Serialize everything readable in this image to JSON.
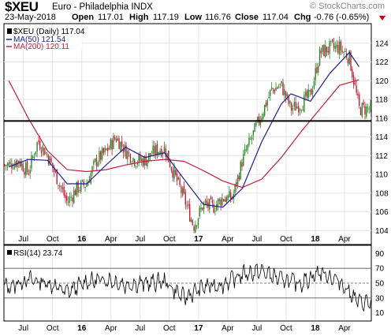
{
  "header": {
    "symbol": "$XEU",
    "description": "Euro - Philadelphia INDX",
    "date": "23-May-2018",
    "open_label": "Open",
    "open_value": "117.01",
    "high_label": "High",
    "high_value": "117.19",
    "low_label": "Low",
    "low_value": "116.76",
    "close_label": "Close",
    "close_value": "117.04",
    "chg_label": "Chg",
    "chg_value": "-0.76 (-0.65%)",
    "brand": "© StockCharts.com",
    "down_arrow_color": "#c00000"
  },
  "chart_data": [
    {
      "type": "candlestick",
      "legend": [
        {
          "label": "$XEU (Daily) 117.04",
          "color": "#000000"
        },
        {
          "label": "MA(50) 121.54",
          "color": "#1f1f9a"
        },
        {
          "label": "MA(200) 120.11",
          "color": "#c0203a"
        }
      ],
      "legend_placement": "top-left",
      "x_ticks": [
        "Jul",
        "Oct",
        "16",
        "Apr",
        "Jul",
        "Oct",
        "17",
        "Apr",
        "Jul",
        "Oct",
        "18",
        "Apr"
      ],
      "y_ticks": [
        104,
        106,
        108,
        110,
        112,
        114,
        116,
        118,
        120,
        122,
        124
      ],
      "ylim": [
        102.6,
        126
      ],
      "horizontal_line": 115.7,
      "up_color": "#2a8a2a",
      "down_color": "#c0203a",
      "close_path": [
        {
          "x": "2015-05",
          "y": 111.0
        },
        {
          "x": "2015-06",
          "y": 111.5
        },
        {
          "x": "2015-07",
          "y": 110.2
        },
        {
          "x": "2015-08",
          "y": 113.6
        },
        {
          "x": "2015-09",
          "y": 112.0
        },
        {
          "x": "2015-10",
          "y": 109.5
        },
        {
          "x": "2015-11",
          "y": 107.0
        },
        {
          "x": "2015-12",
          "y": 108.5
        },
        {
          "x": "2016-01",
          "y": 109.0
        },
        {
          "x": "2016-02",
          "y": 111.5
        },
        {
          "x": "2016-03",
          "y": 112.4
        },
        {
          "x": "2016-04",
          "y": 114.0
        },
        {
          "x": "2016-05",
          "y": 112.5
        },
        {
          "x": "2016-06",
          "y": 111.5
        },
        {
          "x": "2016-07",
          "y": 111.5
        },
        {
          "x": "2016-08",
          "y": 112.5
        },
        {
          "x": "2016-09",
          "y": 112.8
        },
        {
          "x": "2016-10",
          "y": 110.0
        },
        {
          "x": "2016-11",
          "y": 107.5
        },
        {
          "x": "2016-12",
          "y": 104.5
        },
        {
          "x": "2017-01",
          "y": 106.8
        },
        {
          "x": "2017-02",
          "y": 106.5
        },
        {
          "x": "2017-03",
          "y": 107.5
        },
        {
          "x": "2017-04",
          "y": 107.5
        },
        {
          "x": "2017-05",
          "y": 111.5
        },
        {
          "x": "2017-06",
          "y": 114.0
        },
        {
          "x": "2017-07",
          "y": 116.5
        },
        {
          "x": "2017-08",
          "y": 119.0
        },
        {
          "x": "2017-09",
          "y": 119.5
        },
        {
          "x": "2017-10",
          "y": 117.0
        },
        {
          "x": "2017-11",
          "y": 117.5
        },
        {
          "x": "2017-12",
          "y": 118.5
        },
        {
          "x": "2018-01",
          "y": 123.0
        },
        {
          "x": "2018-02",
          "y": 123.5
        },
        {
          "x": "2018-03",
          "y": 123.5
        },
        {
          "x": "2018-04",
          "y": 122.5
        },
        {
          "x": "2018-05",
          "y": 117.0
        }
      ],
      "ma50": [
        {
          "x": "2015-05",
          "y": 110.8
        },
        {
          "x": "2015-07",
          "y": 111.6
        },
        {
          "x": "2015-09",
          "y": 111.5
        },
        {
          "x": "2015-11",
          "y": 109.0
        },
        {
          "x": "2016-01",
          "y": 109.0
        },
        {
          "x": "2016-03",
          "y": 111.0
        },
        {
          "x": "2016-05",
          "y": 112.9
        },
        {
          "x": "2016-07",
          "y": 111.8
        },
        {
          "x": "2016-09",
          "y": 112.3
        },
        {
          "x": "2016-11",
          "y": 109.5
        },
        {
          "x": "2017-01",
          "y": 106.8
        },
        {
          "x": "2017-03",
          "y": 106.5
        },
        {
          "x": "2017-05",
          "y": 108.5
        },
        {
          "x": "2017-07",
          "y": 113.5
        },
        {
          "x": "2017-09",
          "y": 117.5
        },
        {
          "x": "2017-10",
          "y": 118.6
        },
        {
          "x": "2017-12",
          "y": 117.8
        },
        {
          "x": "2018-02",
          "y": 120.8
        },
        {
          "x": "2018-04",
          "y": 123.0
        },
        {
          "x": "2018-05",
          "y": 121.5
        }
      ],
      "ma200": [
        {
          "x": "2015-05",
          "y": 120.0
        },
        {
          "x": "2015-07",
          "y": 116.0
        },
        {
          "x": "2015-09",
          "y": 112.5
        },
        {
          "x": "2015-11",
          "y": 110.5
        },
        {
          "x": "2016-01",
          "y": 110.3
        },
        {
          "x": "2016-03",
          "y": 110.5
        },
        {
          "x": "2016-05",
          "y": 111.0
        },
        {
          "x": "2016-07",
          "y": 111.4
        },
        {
          "x": "2016-09",
          "y": 111.6
        },
        {
          "x": "2016-11",
          "y": 111.4
        },
        {
          "x": "2017-01",
          "y": 110.4
        },
        {
          "x": "2017-03",
          "y": 109.3
        },
        {
          "x": "2017-05",
          "y": 108.6
        },
        {
          "x": "2017-07",
          "y": 109.5
        },
        {
          "x": "2017-09",
          "y": 111.8
        },
        {
          "x": "2017-11",
          "y": 114.5
        },
        {
          "x": "2018-01",
          "y": 117.0
        },
        {
          "x": "2018-03",
          "y": 119.5
        },
        {
          "x": "2018-05",
          "y": 120.1
        }
      ]
    },
    {
      "type": "line",
      "legend": [
        {
          "label": "RSI(14) 23.74",
          "color": "#000000"
        }
      ],
      "y_ticks": [
        10,
        30,
        50,
        70,
        90
      ],
      "ylim": [
        0,
        100
      ],
      "reference_lines": [
        30,
        50,
        70
      ],
      "x_ticks": [
        "Jul",
        "Oct",
        "16",
        "Apr",
        "Jul",
        "Oct",
        "17",
        "Apr",
        "Jul",
        "Oct",
        "18",
        "Apr"
      ],
      "series_path": [
        {
          "x": "2015-05",
          "y": 45
        },
        {
          "x": "2015-07",
          "y": 55
        },
        {
          "x": "2015-09",
          "y": 50
        },
        {
          "x": "2015-11",
          "y": 38
        },
        {
          "x": "2016-01",
          "y": 52
        },
        {
          "x": "2016-03",
          "y": 55
        },
        {
          "x": "2016-05",
          "y": 48
        },
        {
          "x": "2016-07",
          "y": 50
        },
        {
          "x": "2016-09",
          "y": 52
        },
        {
          "x": "2016-11",
          "y": 30
        },
        {
          "x": "2017-01",
          "y": 45
        },
        {
          "x": "2017-03",
          "y": 48
        },
        {
          "x": "2017-05",
          "y": 62
        },
        {
          "x": "2017-07",
          "y": 66
        },
        {
          "x": "2017-09",
          "y": 55
        },
        {
          "x": "2017-11",
          "y": 50
        },
        {
          "x": "2018-01",
          "y": 65
        },
        {
          "x": "2018-03",
          "y": 52
        },
        {
          "x": "2018-05",
          "y": 24
        }
      ]
    }
  ]
}
